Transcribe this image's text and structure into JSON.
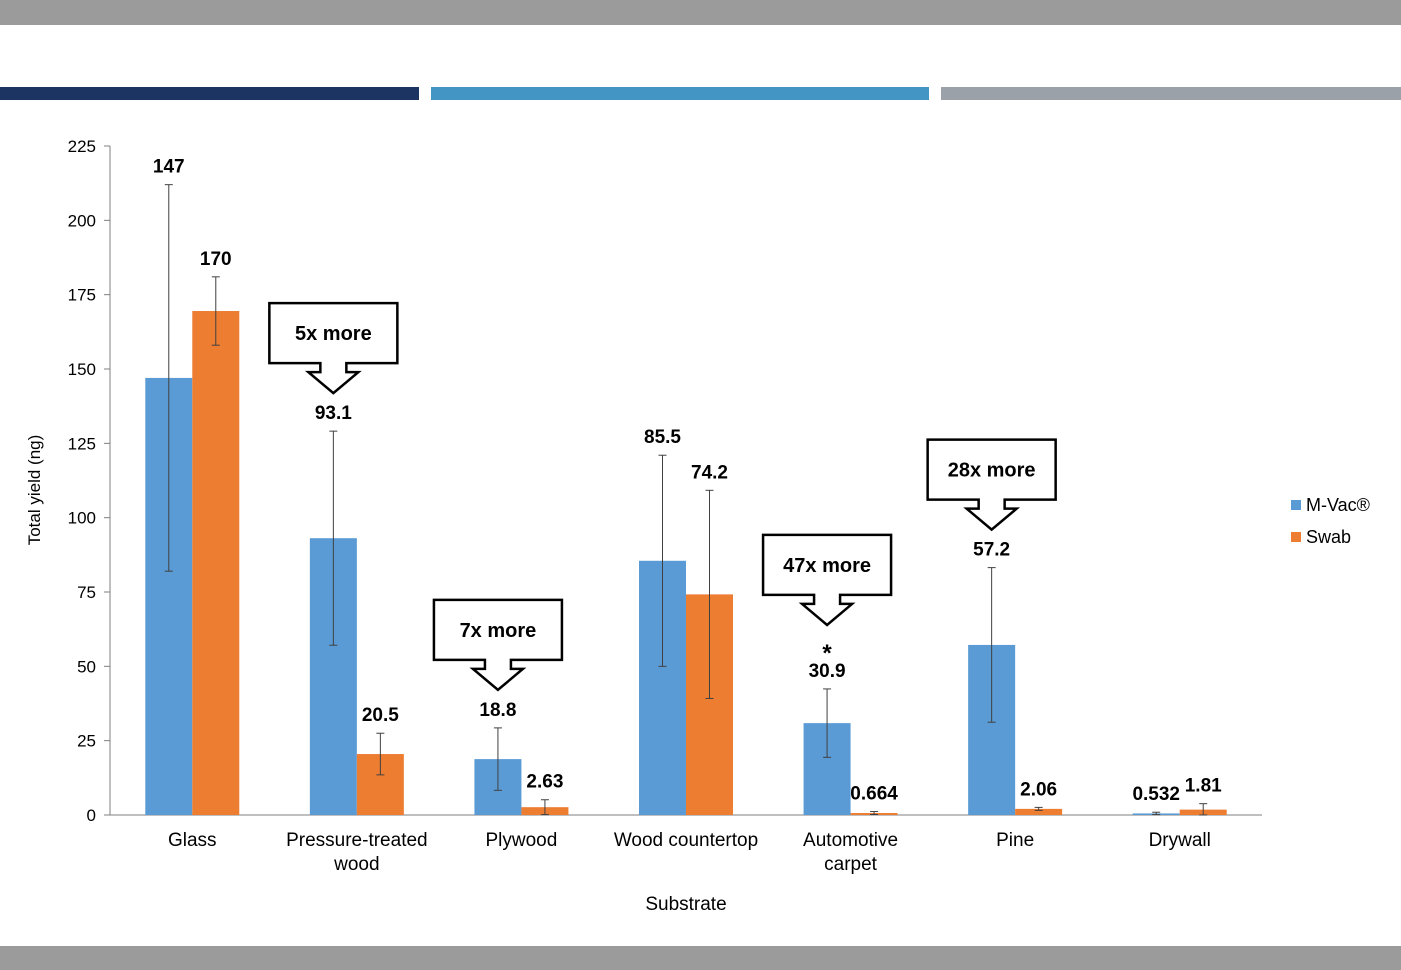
{
  "chart_data": {
    "type": "bar",
    "xlabel": "Substrate",
    "ylabel": "Total yield (ng)",
    "ylim": [
      0,
      225
    ],
    "yticks": [
      0,
      25,
      50,
      75,
      100,
      125,
      150,
      175,
      200,
      225
    ],
    "categories": [
      [
        "Glass"
      ],
      [
        "Pressure-treated",
        "wood"
      ],
      [
        "Plywood"
      ],
      [
        "Wood countertop"
      ],
      [
        "Automotive",
        "carpet"
      ],
      [
        "Pine"
      ],
      [
        "Drywall"
      ]
    ],
    "series": [
      {
        "name": "M-Vac®",
        "color": "#5b9bd5",
        "values": [
          147,
          93.1,
          18.8,
          85.5,
          30.9,
          57.2,
          0.532
        ],
        "labels": [
          "147",
          "93.1",
          "18.8",
          "85.5",
          "30.9",
          "57.2",
          "0.532"
        ],
        "error": [
          65,
          36,
          10.5,
          35.5,
          11.5,
          26,
          0.4
        ]
      },
      {
        "name": "Swab",
        "color": "#ed7d31",
        "values": [
          169.5,
          20.5,
          2.63,
          74.2,
          0.664,
          2.06,
          1.81
        ],
        "labels": [
          "170",
          "20.5",
          "2.63",
          "74.2",
          "0.664",
          "2.06",
          "1.81"
        ],
        "error": [
          11.5,
          7,
          2.5,
          35,
          0.5,
          0.5,
          2
        ]
      }
    ],
    "callouts": [
      {
        "text": "5x more",
        "category": 1
      },
      {
        "text": "7x more",
        "category": 2
      },
      {
        "text": "47x more",
        "category": 4
      },
      {
        "text": "28x more",
        "category": 5
      }
    ],
    "significance": [
      {
        "text": "*",
        "category": 4
      }
    ],
    "legend_position": "right",
    "grid": false
  }
}
